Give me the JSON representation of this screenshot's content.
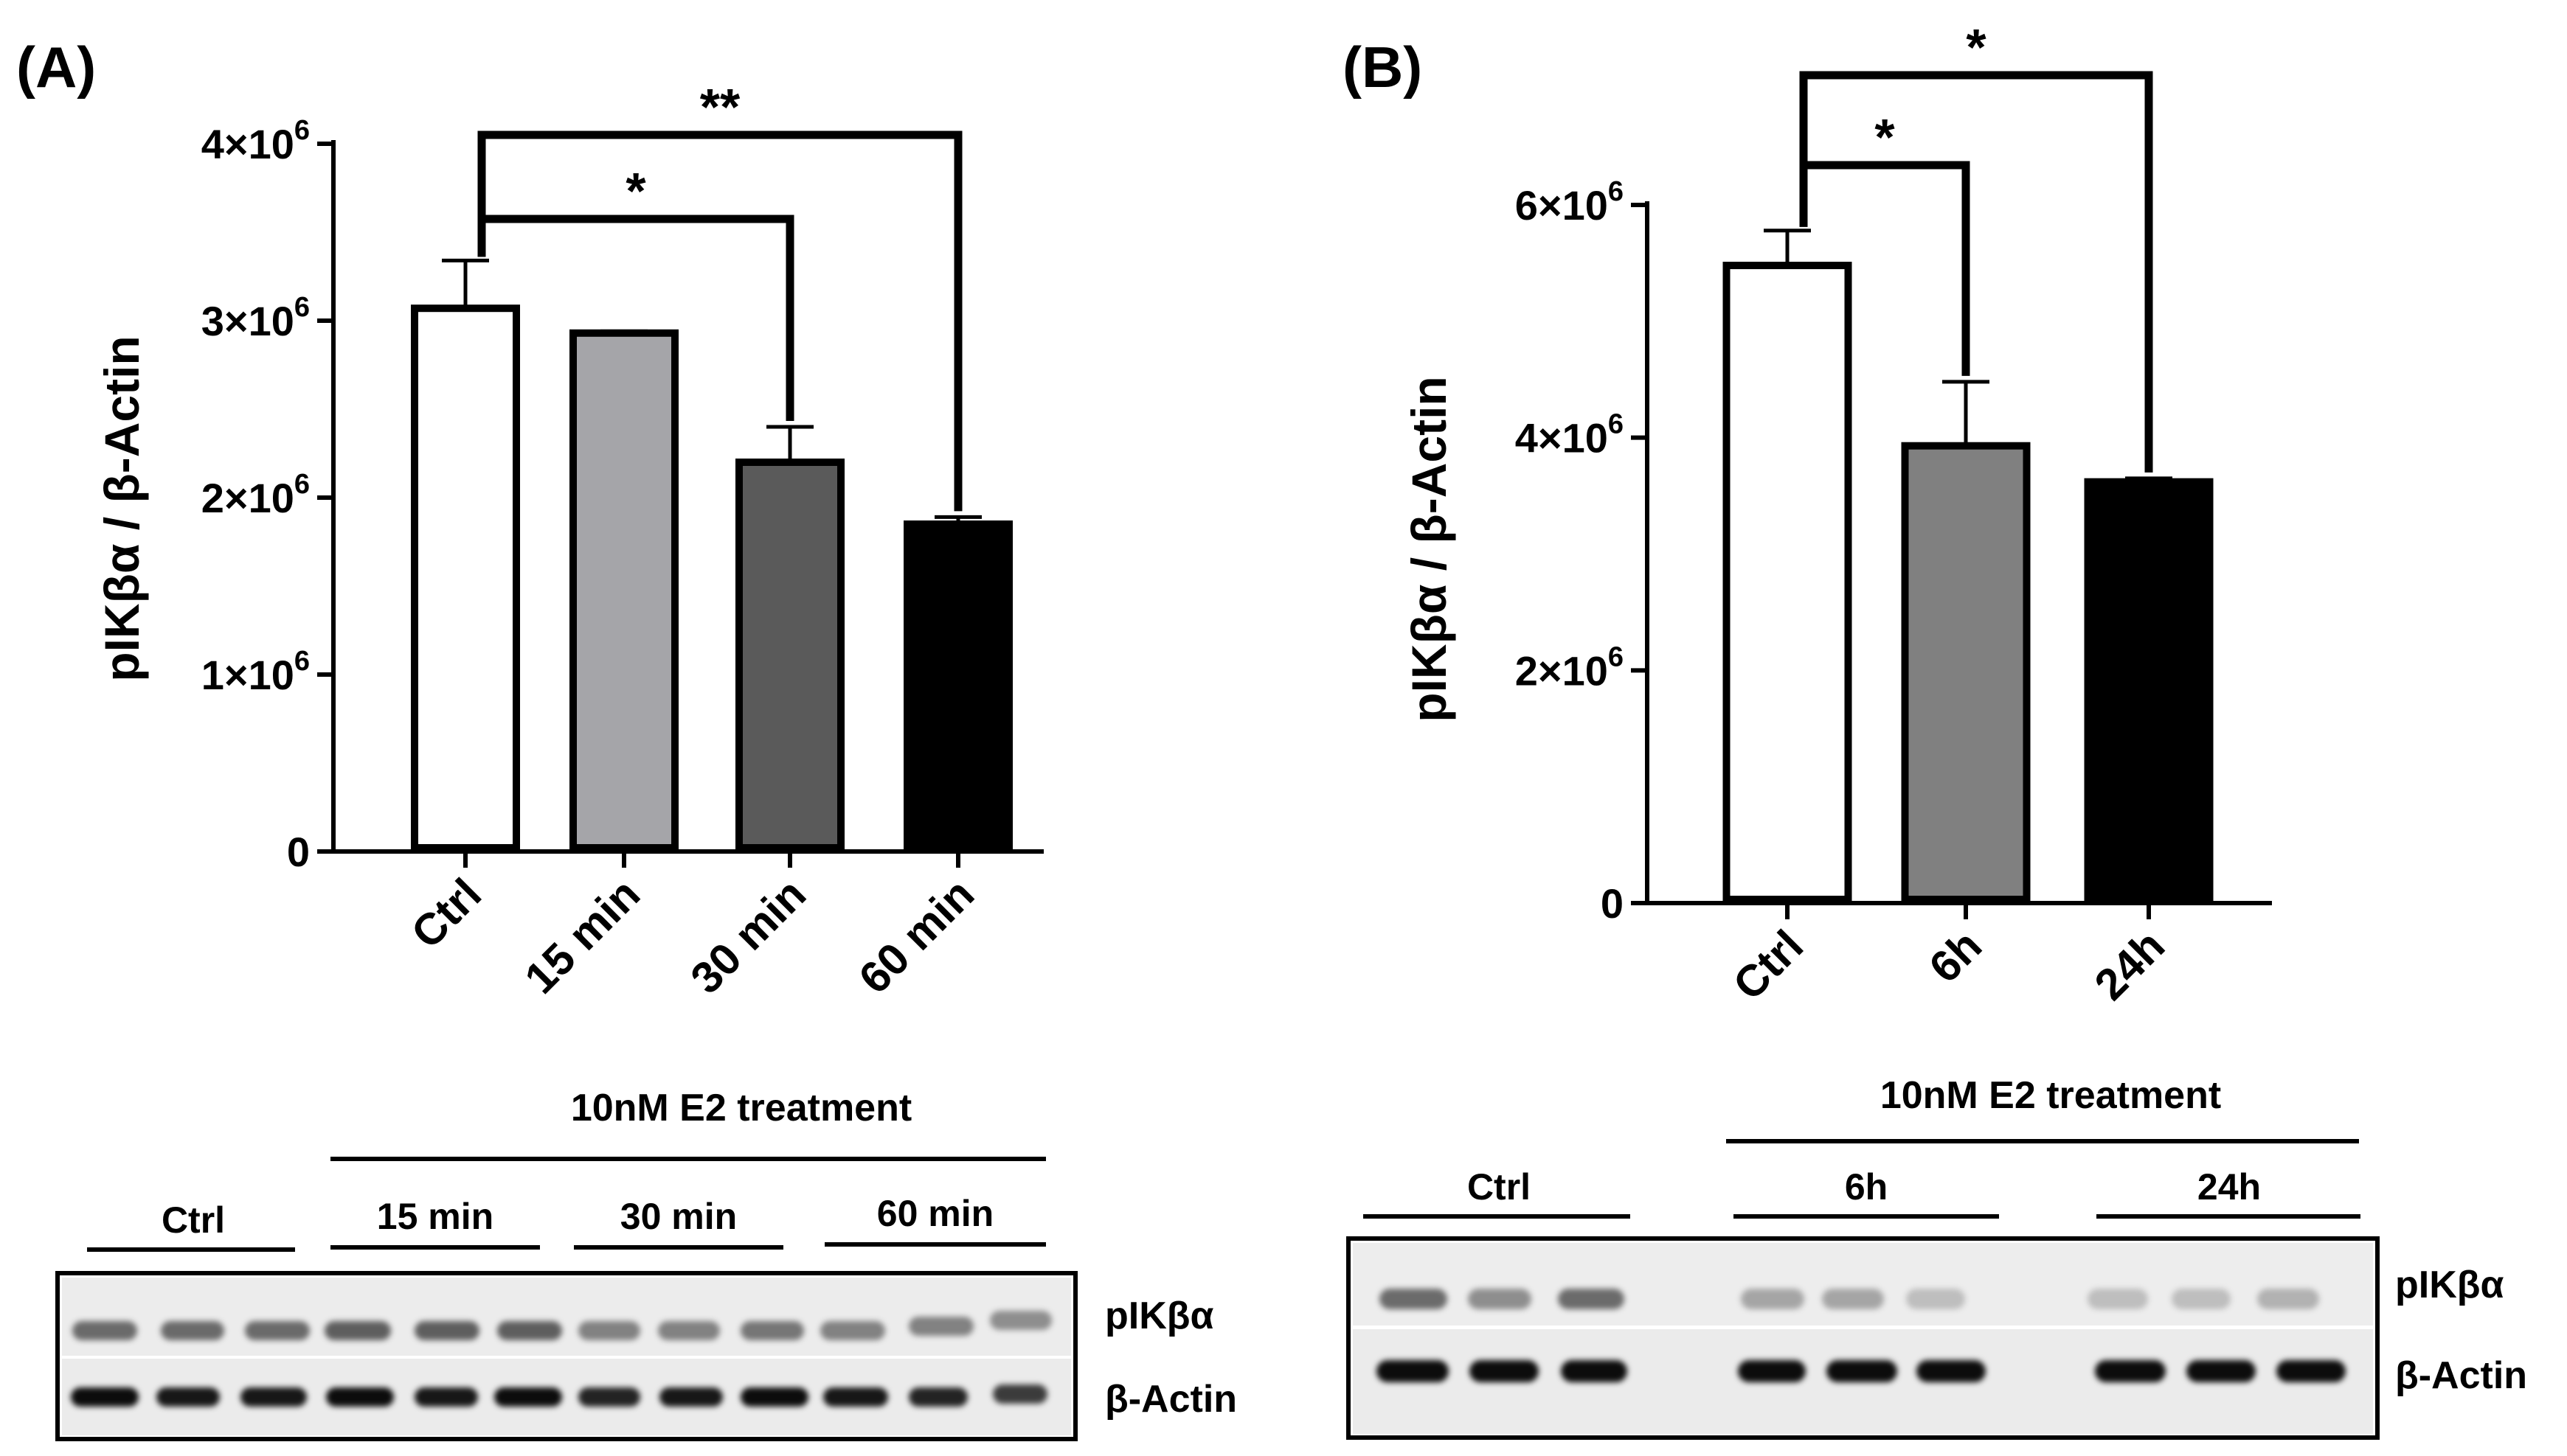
{
  "chart_data": [
    {
      "panel_label": "(A)",
      "type": "bar",
      "ylabel": "pIKβα / β-Actin",
      "ylim": [
        0,
        4000000
      ],
      "yticks": [
        {
          "value": 0,
          "label": "0"
        },
        {
          "value": 1000000,
          "label": "1×10",
          "exp": "6"
        },
        {
          "value": 2000000,
          "label": "2×10",
          "exp": "6"
        },
        {
          "value": 3000000,
          "label": "3×10",
          "exp": "6"
        },
        {
          "value": 4000000,
          "label": "4×10",
          "exp": "6"
        }
      ],
      "categories": [
        "Ctrl",
        "15 min",
        "30 min",
        "60 min"
      ],
      "values": [
        3070000,
        2930000,
        2200000,
        1850000
      ],
      "errors": [
        270000,
        10000,
        200000,
        40000
      ],
      "colors": [
        "#ffffff",
        "#a5a5a9",
        "#5a5a5a",
        "#000000"
      ],
      "significance": [
        {
          "from": 0,
          "to": 2,
          "label": "*"
        },
        {
          "from": 0,
          "to": 3,
          "label": "**"
        }
      ],
      "treatment_label": "10nM E2 treatment",
      "blot": {
        "groups": [
          "Ctrl",
          "15 min",
          "30 min",
          "60 min"
        ],
        "bands": [
          "pIKβα",
          "β-Actin"
        ]
      }
    },
    {
      "panel_label": "(B)",
      "type": "bar",
      "ylabel": "pIKβα / β-Actin",
      "ylim": [
        0,
        6000000
      ],
      "yticks": [
        {
          "value": 0,
          "label": "0"
        },
        {
          "value": 2000000,
          "label": "2×10",
          "exp": "6"
        },
        {
          "value": 4000000,
          "label": "4×10",
          "exp": "6"
        },
        {
          "value": 6000000,
          "label": "6×10",
          "exp": "6"
        }
      ],
      "categories": [
        "Ctrl",
        "6h",
        "24h"
      ],
      "values": [
        5480000,
        3930000,
        3620000
      ],
      "errors": [
        300000,
        550000,
        30000
      ],
      "colors": [
        "#ffffff",
        "#808080",
        "#000000"
      ],
      "significance": [
        {
          "from": 0,
          "to": 1,
          "label": "*"
        },
        {
          "from": 0,
          "to": 2,
          "label": "*"
        }
      ],
      "treatment_label": "10nM E2 treatment",
      "blot": {
        "groups": [
          "Ctrl",
          "6h",
          "24h"
        ],
        "bands": [
          "pIKβα",
          "β-Actin"
        ]
      }
    }
  ]
}
